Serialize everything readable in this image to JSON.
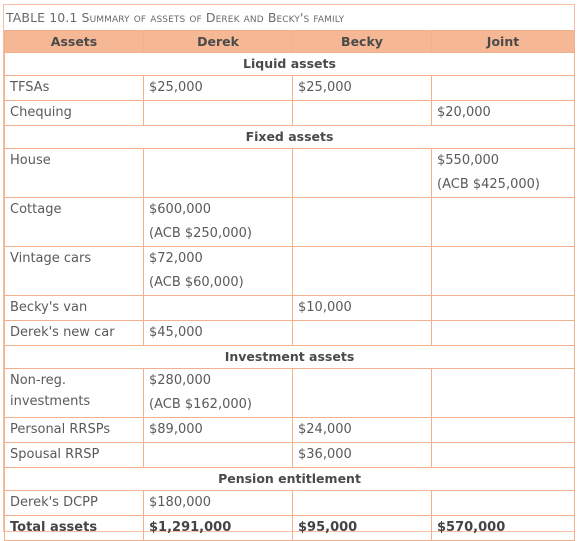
{
  "caption": "TABLE 10.1 Summary of assets of Derek and Becky's family",
  "headers": [
    "Assets",
    "Derek",
    "Becky",
    "Joint"
  ],
  "sections": {
    "liquid": "Liquid assets",
    "fixed": "Fixed assets",
    "investment": "Investment assets",
    "pension": "Pension entitlement"
  },
  "rows": {
    "tfsas": {
      "label": "TFSAs",
      "derek": "$25,000",
      "becky": "$25,000",
      "joint": ""
    },
    "chequing": {
      "label": "Chequing",
      "derek": "",
      "becky": "",
      "joint": "$20,000"
    },
    "house": {
      "label": "House",
      "derek": "",
      "becky": "",
      "joint": "$550,000",
      "joint_note": "(ACB $425,000)"
    },
    "cottage": {
      "label": "Cottage",
      "derek": "$600,000",
      "derek_note": "(ACB $250,000)",
      "becky": "",
      "joint": ""
    },
    "vintage": {
      "label": "Vintage cars",
      "derek": "$72,000",
      "derek_note": "(ACB $60,000)",
      "becky": "",
      "joint": ""
    },
    "becky_van": {
      "label": "Becky's van",
      "derek": "",
      "becky": "$10,000",
      "joint": ""
    },
    "derek_car": {
      "label": "Derek's new car",
      "derek": "$45,000",
      "becky": "",
      "joint": ""
    },
    "nonreg": {
      "label_1": "Non-reg.",
      "label_2": "investments",
      "derek": "$280,000",
      "derek_note": "(ACB $162,000)",
      "becky": "",
      "joint": ""
    },
    "personal_rrsps": {
      "label": "Personal RRSPs",
      "derek": "$89,000",
      "becky": "$24,000",
      "joint": ""
    },
    "spousal_rrsp": {
      "label": "Spousal RRSP",
      "derek": "",
      "becky": "$36,000",
      "joint": ""
    },
    "dcpp": {
      "label": "Derek's DCPP",
      "derek": "$180,000",
      "becky": "",
      "joint": ""
    },
    "total": {
      "label": "Total assets",
      "derek": "$1,291,000",
      "becky": "$95,000",
      "joint": "$570,000"
    }
  },
  "colors": {
    "header_bg": "#f6b894",
    "border": "#f2b08d",
    "text": "#555555"
  }
}
